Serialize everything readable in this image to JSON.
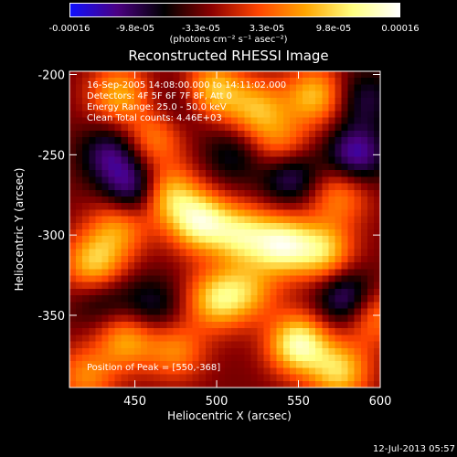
{
  "colorbar": {
    "ticks": [
      "-0.00016",
      "-9.8e-05",
      "-3.3e-05",
      "3.3e-05",
      "9.8e-05",
      "0.00016"
    ],
    "units": "(photons cm⁻² s⁻¹ asec⁻²)",
    "colors": [
      "#1010ff",
      "#4b0082",
      "#000000",
      "#8b0000",
      "#ff4500",
      "#ffa500",
      "#ffff80",
      "#ffffff"
    ]
  },
  "info": {
    "time": "16-Sep-2005 14:08:00.000 to 14:11:02.000",
    "detectors": "Detectors: 4F 5F 6F 7F 8F, Att 0",
    "energy": "Energy Range: 25.0 - 50.0 keV",
    "clean": "Clean     Total counts: 4.46E+03",
    "peak": "Position of Peak = [550,-368]"
  },
  "footer": "12-Jul-2013 05:57",
  "chart_data": {
    "type": "heatmap",
    "title": "Reconstructed RHESSI Image",
    "xlabel": "Heliocentric X (arcsec)",
    "ylabel": "Heliocentric Y (arcsec)",
    "xlim": [
      410,
      600
    ],
    "ylim": [
      -395,
      -198
    ],
    "xticks": [
      450,
      500,
      550,
      600
    ],
    "yticks": [
      -200,
      -250,
      -300,
      -350
    ],
    "color_range": [
      -0.00016,
      0.00016
    ],
    "peak": [
      550,
      -368
    ],
    "sources": [
      {
        "x": 440,
        "y": -212,
        "v": 0.0001
      },
      {
        "x": 498,
        "y": -210,
        "v": 0.00012
      },
      {
        "x": 525,
        "y": -222,
        "v": 0.0001
      },
      {
        "x": 560,
        "y": -213,
        "v": 0.00011
      },
      {
        "x": 540,
        "y": -245,
        "v": 8e-05
      },
      {
        "x": 575,
        "y": -275,
        "v": 8e-05
      },
      {
        "x": 462,
        "y": -240,
        "v": 8e-05
      },
      {
        "x": 470,
        "y": -275,
        "v": 0.00012
      },
      {
        "x": 490,
        "y": -292,
        "v": 0.00015
      },
      {
        "x": 515,
        "y": -300,
        "v": 0.00012
      },
      {
        "x": 540,
        "y": -306,
        "v": 0.00015
      },
      {
        "x": 565,
        "y": -310,
        "v": 0.00012
      },
      {
        "x": 425,
        "y": -318,
        "v": 0.00012
      },
      {
        "x": 440,
        "y": -295,
        "v": 9e-05
      },
      {
        "x": 500,
        "y": -340,
        "v": 0.00012
      },
      {
        "x": 520,
        "y": -335,
        "v": 8e-05
      },
      {
        "x": 445,
        "y": -365,
        "v": 0.0001
      },
      {
        "x": 475,
        "y": -372,
        "v": 8e-05
      },
      {
        "x": 550,
        "y": -368,
        "v": 0.00016
      },
      {
        "x": 575,
        "y": -385,
        "v": 0.00012
      },
      {
        "x": 595,
        "y": -350,
        "v": 9e-05
      },
      {
        "x": 420,
        "y": -388,
        "v": 8e-05
      },
      {
        "x": 435,
        "y": -250,
        "v": -8e-05
      },
      {
        "x": 450,
        "y": -272,
        "v": -0.0001
      },
      {
        "x": 545,
        "y": -262,
        "v": -9e-05
      },
      {
        "x": 585,
        "y": -250,
        "v": -0.0001
      },
      {
        "x": 590,
        "y": -215,
        "v": -6e-05
      },
      {
        "x": 460,
        "y": -345,
        "v": -6e-05
      },
      {
        "x": 580,
        "y": -340,
        "v": -0.0001
      },
      {
        "x": 510,
        "y": -250,
        "v": -5e-05
      },
      {
        "x": 480,
        "y": -220,
        "v": -4e-05
      },
      {
        "x": 430,
        "y": -340,
        "v": -5e-05
      }
    ]
  }
}
